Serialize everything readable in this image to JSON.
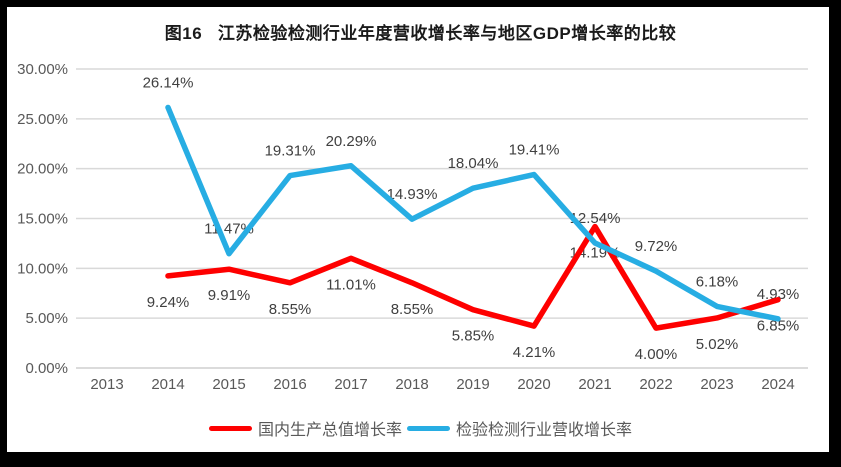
{
  "chart_data": {
    "type": "line",
    "title": "图16   江苏检验检测行业年度营收增长率与地区GDP增长率的比较",
    "categories": [
      "2013",
      "2014",
      "2015",
      "2016",
      "2017",
      "2018",
      "2019",
      "2020",
      "2021",
      "2022",
      "2023",
      "2024"
    ],
    "series": [
      {
        "id": "gdp-growth",
        "name": "国内生产总值增长率",
        "color": "#FE0000",
        "label_position": "below",
        "values": [
          null,
          9.24,
          9.91,
          8.55,
          11.01,
          8.55,
          5.85,
          4.21,
          14.19,
          4.0,
          5.02,
          6.85
        ],
        "labels": [
          null,
          "9.24%",
          "9.91%",
          "8.55%",
          "11.01%",
          "8.55%",
          "5.85%",
          "4.21%",
          "14.19%",
          "4.00%",
          "5.02%",
          "6.85%"
        ]
      },
      {
        "id": "industry-revenue-growth",
        "name": "检验检测行业营收增长率",
        "color": "#27ADE3",
        "label_position": "above",
        "values": [
          null,
          26.14,
          11.47,
          19.31,
          20.29,
          14.93,
          18.04,
          19.41,
          12.54,
          9.72,
          6.18,
          4.93
        ],
        "labels": [
          null,
          "26.14%",
          "11.47%",
          "19.31%",
          "20.29%",
          "14.93%",
          "18.04%",
          "19.41%",
          "12.54%",
          "9.72%",
          "6.18%",
          "4.93%"
        ]
      }
    ],
    "y_ticks": [
      "30.00%",
      "25.00%",
      "20.00%",
      "15.00%",
      "10.00%",
      "5.00%",
      "0.00%"
    ],
    "ylim": [
      0,
      30
    ],
    "grid": true,
    "legend_position": "bottom",
    "colors": {
      "gridline": "#D9D9D9",
      "baseline": "#CFCFCF",
      "tick_text": "#595959",
      "data_label_text": "#404040",
      "title_text": "#1a1a1a",
      "panel_background": "#ffffff",
      "frame_border": "#000000"
    }
  }
}
